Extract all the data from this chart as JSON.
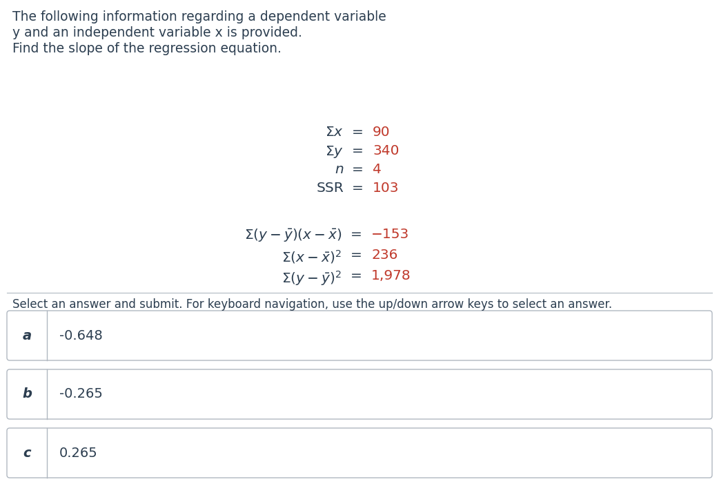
{
  "title_lines": [
    "The following information regarding a dependent variable",
    "y and an independent variable x is provided.",
    "Find the slope of the regression equation."
  ],
  "stats_label_color": "#2c3e50",
  "stats_value_color": "#c0392b",
  "formula_label_color": "#2c3e50",
  "formula_value_color": "#c0392b",
  "select_text": "Select an answer and submit. For keyboard navigation, use the up/down arrow keys to select an answer.",
  "answers": [
    {
      "label": "a",
      "value": "-0.648"
    },
    {
      "label": "b",
      "value": "-0.265"
    },
    {
      "label": "c",
      "value": "0.265"
    }
  ],
  "background_color": "#ffffff",
  "text_color": "#2c3e50",
  "divider_color": "#b0b8c1",
  "box_border_color": "#b0b8c1"
}
